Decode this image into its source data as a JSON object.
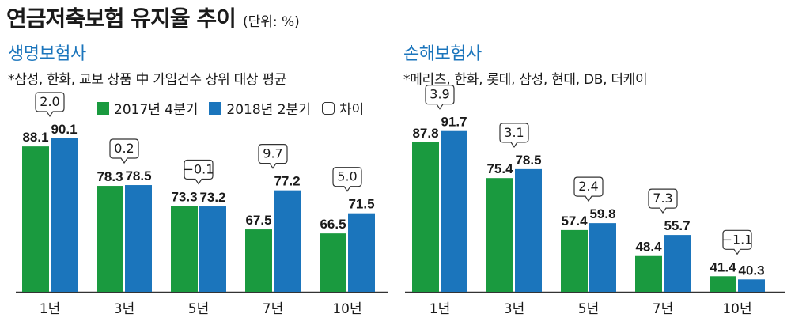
{
  "title": "연금저축보험 유지율 추이",
  "unit": "(단위: %)",
  "colors": {
    "series1": "#1a9a3f",
    "series2": "#1b75bc",
    "accent": "#1b75bc"
  },
  "legend": {
    "series1": "2017년 4분기",
    "series2": "2018년 2분기",
    "diff": "차이"
  },
  "panels": [
    {
      "title": "생명보험사",
      "note": "*삼성, 한화, 교보 상품 中 가입건수 상위 대상 평균"
    },
    {
      "title": "손해보험사",
      "note": "*메리츠, 한화, 롯데, 삼성, 현대, DB, 더케이"
    }
  ],
  "chart_data": [
    {
      "type": "bar",
      "title": "생명보험사",
      "categories": [
        "1년",
        "3년",
        "5년",
        "7년",
        "10년"
      ],
      "series": [
        {
          "name": "2017년 4분기",
          "values": [
            88.1,
            78.3,
            73.3,
            67.5,
            66.5
          ]
        },
        {
          "name": "2018년 2분기",
          "values": [
            90.1,
            78.5,
            73.2,
            77.2,
            71.5
          ]
        }
      ],
      "differences": [
        "2.0",
        "0.2",
        "−0.1",
        "9.7",
        "5.0"
      ],
      "value_labels": [
        [
          "88.1",
          "78.3",
          "73.3",
          "67.5",
          "66.5"
        ],
        [
          "90.1",
          "78.5",
          "73.2",
          "77.2",
          "71.5"
        ]
      ],
      "ylim": [
        52,
        95
      ]
    },
    {
      "type": "bar",
      "title": "손해보험사",
      "categories": [
        "1년",
        "3년",
        "5년",
        "7년",
        "10년"
      ],
      "series": [
        {
          "name": "2017년 4분기",
          "values": [
            87.8,
            75.4,
            57.4,
            48.4,
            41.4
          ]
        },
        {
          "name": "2018년 2분기",
          "values": [
            91.7,
            78.5,
            59.8,
            55.7,
            40.3
          ]
        }
      ],
      "differences": [
        "3.9",
        "3.1",
        "2.4",
        "7.3",
        "−1.1"
      ],
      "value_labels": [
        [
          "87.8",
          "75.4",
          "57.4",
          "48.4",
          "41.4"
        ],
        [
          "91.7",
          "78.5",
          "59.8",
          "55.7",
          "40.3"
        ]
      ],
      "ylim": [
        36,
        96
      ]
    }
  ]
}
